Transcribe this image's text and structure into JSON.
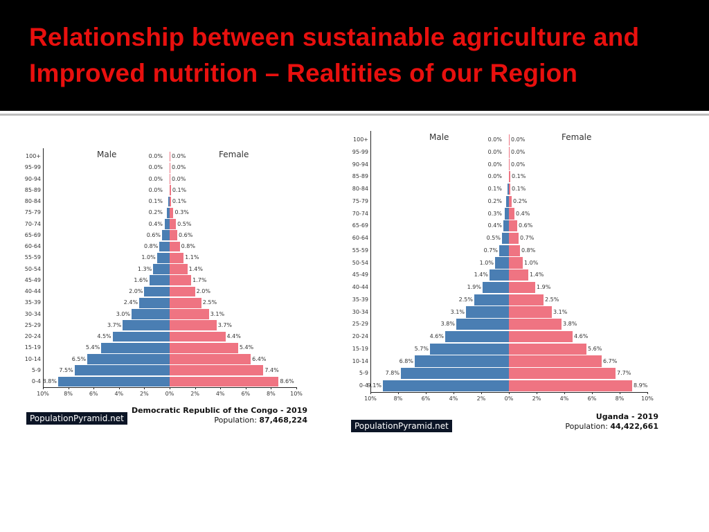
{
  "slide": {
    "title": "Relationship between sustainable agriculture and Improved nutrition – Realtities of our Region"
  },
  "chart_data": [
    {
      "type": "bar",
      "subtype": "population-pyramid",
      "title": "Democratic Republic of the Congo - 2019",
      "population_label": "Population:",
      "population": "87,468,224",
      "source": "PopulationPyramid.net",
      "male_label": "Male",
      "female_label": "Female",
      "ages": [
        "100+",
        "95-99",
        "90-94",
        "85-89",
        "80-84",
        "75-79",
        "70-74",
        "65-69",
        "60-64",
        "55-59",
        "50-54",
        "45-49",
        "40-44",
        "35-39",
        "30-34",
        "25-29",
        "20-24",
        "15-19",
        "10-14",
        "5-9",
        "0-4"
      ],
      "male": [
        0.0,
        0.0,
        0.0,
        0.0,
        0.1,
        0.2,
        0.4,
        0.6,
        0.8,
        1.0,
        1.3,
        1.6,
        2.0,
        2.4,
        3.0,
        3.7,
        4.5,
        5.4,
        6.5,
        7.5,
        8.8
      ],
      "female": [
        0.0,
        0.0,
        0.0,
        0.1,
        0.1,
        0.3,
        0.5,
        0.6,
        0.8,
        1.1,
        1.4,
        1.7,
        2.0,
        2.5,
        3.1,
        3.7,
        4.4,
        5.4,
        6.4,
        7.4,
        8.6
      ],
      "xticks": [
        "10%",
        "8%",
        "6%",
        "4%",
        "2%",
        "0%",
        "2%",
        "4%",
        "6%",
        "8%",
        "10%"
      ],
      "xlim": [
        -10,
        10
      ],
      "colors": {
        "male": "#4a7eb3",
        "female": "#ef7482"
      }
    },
    {
      "type": "bar",
      "subtype": "population-pyramid",
      "title": "Uganda - 2019",
      "population_label": "Population:",
      "population": "44,422,661",
      "source": "PopulationPyramid.net",
      "male_label": "Male",
      "female_label": "Female",
      "ages": [
        "100+",
        "95-99",
        "90-94",
        "85-89",
        "80-84",
        "75-79",
        "70-74",
        "65-69",
        "60-64",
        "55-59",
        "50-54",
        "45-49",
        "40-44",
        "35-39",
        "30-34",
        "25-29",
        "20-24",
        "15-19",
        "10-14",
        "5-9",
        "0-4"
      ],
      "male": [
        0.0,
        0.0,
        0.0,
        0.0,
        0.1,
        0.2,
        0.3,
        0.4,
        0.5,
        0.7,
        1.0,
        1.4,
        1.9,
        2.5,
        3.1,
        3.8,
        4.6,
        5.7,
        6.8,
        7.8,
        9.1
      ],
      "female": [
        0.0,
        0.0,
        0.0,
        0.1,
        0.1,
        0.2,
        0.4,
        0.6,
        0.7,
        0.8,
        1.0,
        1.4,
        1.9,
        2.5,
        3.1,
        3.8,
        4.6,
        5.6,
        6.7,
        7.7,
        8.9
      ],
      "xticks": [
        "10%",
        "8%",
        "6%",
        "4%",
        "2%",
        "0%",
        "2%",
        "4%",
        "6%",
        "8%",
        "10%"
      ],
      "xlim": [
        -10,
        10
      ],
      "colors": {
        "male": "#4a7eb3",
        "female": "#ef7482"
      }
    }
  ]
}
